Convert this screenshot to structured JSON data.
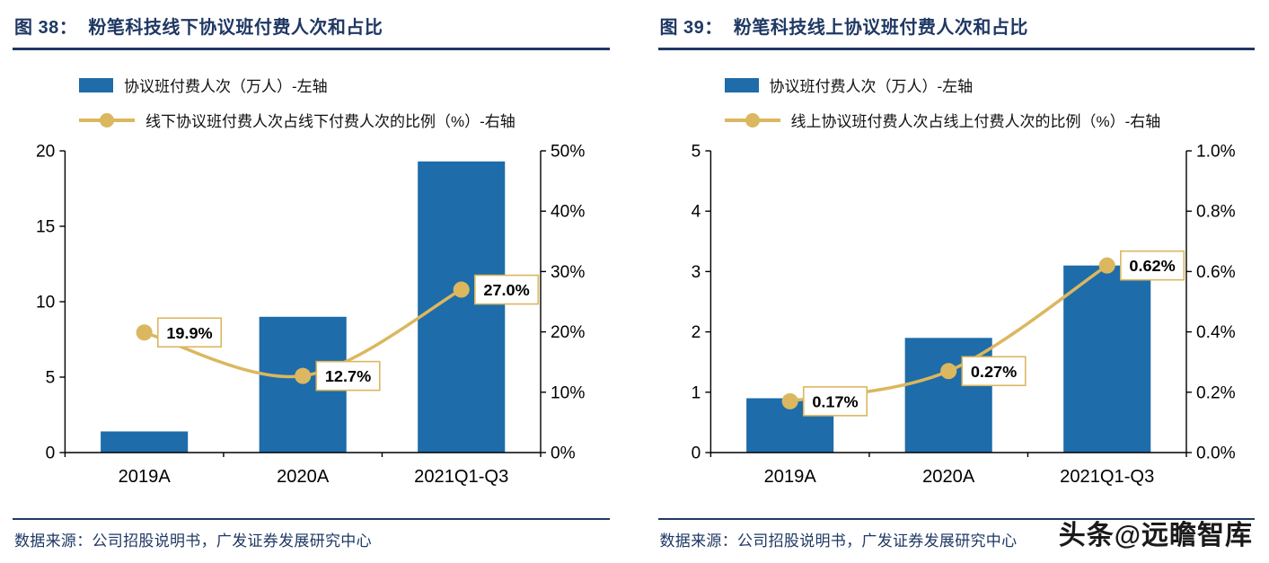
{
  "watermark": "头条@远瞻智库",
  "colors": {
    "bar_blue": "#1E6CA9",
    "line_gold": "#DBB75F",
    "navy": "#1F3864",
    "label_text": "#000000"
  },
  "chart_data": [
    {
      "type": "bar",
      "combo": "bar+line",
      "title": "图 38：  粉笔科技线下协议班付费人次和占比",
      "categories": [
        "2019A",
        "2020A",
        "2021Q1-Q3"
      ],
      "series": [
        {
          "name": "协议班付费人次（万人）-左轴",
          "type": "bar",
          "axis": "left",
          "values": [
            1.4,
            9.0,
            19.3
          ]
        },
        {
          "name": "线下协议班付费人次占线下付费人次的比例（%）-右轴",
          "type": "line",
          "axis": "right",
          "values": [
            19.9,
            12.7,
            27.0
          ],
          "point_labels": [
            "19.9%",
            "12.7%",
            "27.0%"
          ]
        }
      ],
      "left_axis": {
        "min": 0,
        "max": 20,
        "tick_labels": [
          "0",
          "5",
          "10",
          "15",
          "20"
        ]
      },
      "right_axis": {
        "min": 0,
        "max": 50,
        "tick_labels": [
          "0%",
          "10%",
          "20%",
          "30%",
          "40%",
          "50%"
        ]
      },
      "legend_position": "top-left",
      "grid": false,
      "source": "数据来源：公司招股说明书，广发证券发展研究中心"
    },
    {
      "type": "bar",
      "combo": "bar+line",
      "title": "图 39：  粉笔科技线上协议班付费人次和占比",
      "categories": [
        "2019A",
        "2020A",
        "2021Q1-Q3"
      ],
      "series": [
        {
          "name": "协议班付费人次（万人）-左轴",
          "type": "bar",
          "axis": "left",
          "values": [
            0.9,
            1.9,
            3.1
          ]
        },
        {
          "name": "线上协议班付费人次占线上付费人次的比例（%）-右轴",
          "type": "line",
          "axis": "right",
          "values": [
            0.17,
            0.27,
            0.62
          ],
          "point_labels": [
            "0.17%",
            "0.27%",
            "0.62%"
          ]
        }
      ],
      "left_axis": {
        "min": 0,
        "max": 5,
        "tick_labels": [
          "0",
          "1",
          "2",
          "3",
          "4",
          "5"
        ]
      },
      "right_axis": {
        "min": 0,
        "max": 1.0,
        "tick_labels": [
          "0.0%",
          "0.2%",
          "0.4%",
          "0.6%",
          "0.8%",
          "1.0%"
        ]
      },
      "legend_position": "top-left",
      "grid": false,
      "source": "数据来源：公司招股说明书，广发证券发展研究中心"
    }
  ]
}
